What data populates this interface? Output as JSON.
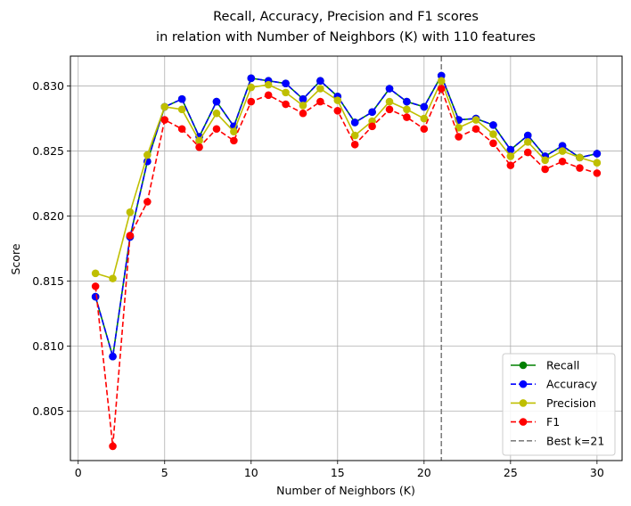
{
  "chart_data": {
    "type": "line",
    "title_line1": "Recall, Accuracy, Precision and F1 scores",
    "title_line2": "in relation with Number of Neighbors (K) with 110 features",
    "xlabel": "Number of Neighbors (K)",
    "ylabel": "Score",
    "xlim": [
      -0.45,
      31.45
    ],
    "ylim": [
      0.8012,
      0.8323
    ],
    "xticks": [
      0,
      5,
      10,
      15,
      20,
      25,
      30
    ],
    "yticks": [
      0.805,
      0.81,
      0.815,
      0.82,
      0.825,
      0.83
    ],
    "ytick_labels": [
      "0.805",
      "0.810",
      "0.815",
      "0.820",
      "0.825",
      "0.830"
    ],
    "grid": true,
    "legend_position": "lower right",
    "x": [
      1,
      2,
      3,
      4,
      5,
      6,
      7,
      8,
      9,
      10,
      11,
      12,
      13,
      14,
      15,
      16,
      17,
      18,
      19,
      20,
      21,
      22,
      23,
      24,
      25,
      26,
      27,
      28,
      29,
      30
    ],
    "series": [
      {
        "name": "Recall",
        "color": "#008000",
        "dash": "solid",
        "values": [
          0.8138,
          0.8092,
          0.8184,
          0.8242,
          0.8284,
          0.829,
          0.8261,
          0.8288,
          0.8269,
          0.8306,
          0.8304,
          0.8302,
          0.829,
          0.8304,
          0.8292,
          0.8272,
          0.828,
          0.8298,
          0.8288,
          0.8284,
          0.8308,
          0.8274,
          0.8275,
          0.827,
          0.8251,
          0.8262,
          0.8246,
          0.8254,
          0.8245,
          0.8248
        ]
      },
      {
        "name": "Accuracy",
        "color": "#0000ff",
        "dash": "dashed",
        "values": [
          0.8138,
          0.8092,
          0.8184,
          0.8242,
          0.8284,
          0.829,
          0.8261,
          0.8288,
          0.8269,
          0.8306,
          0.8304,
          0.8302,
          0.829,
          0.8304,
          0.8292,
          0.8272,
          0.828,
          0.8298,
          0.8288,
          0.8284,
          0.8308,
          0.8274,
          0.8275,
          0.827,
          0.8251,
          0.8262,
          0.8246,
          0.8254,
          0.8245,
          0.8248
        ]
      },
      {
        "name": "Precision",
        "color": "#bfbf00",
        "dash": "solid",
        "values": [
          0.8156,
          0.8152,
          0.8203,
          0.8247,
          0.8284,
          0.8282,
          0.8258,
          0.8279,
          0.8265,
          0.8299,
          0.8301,
          0.8295,
          0.8285,
          0.8298,
          0.8289,
          0.8262,
          0.8273,
          0.8288,
          0.8282,
          0.8275,
          0.8304,
          0.8268,
          0.8274,
          0.8263,
          0.8246,
          0.8257,
          0.8243,
          0.825,
          0.8245,
          0.8241
        ]
      },
      {
        "name": "F1",
        "color": "#ff0000",
        "dash": "dashed",
        "values": [
          0.8146,
          0.8023,
          0.8185,
          0.8211,
          0.8274,
          0.8267,
          0.8253,
          0.8267,
          0.8258,
          0.8288,
          0.8293,
          0.8286,
          0.8279,
          0.8288,
          0.8281,
          0.8255,
          0.8269,
          0.8282,
          0.8276,
          0.8267,
          0.8298,
          0.8261,
          0.8267,
          0.8256,
          0.8239,
          0.8249,
          0.8236,
          0.8242,
          0.8237,
          0.8233
        ]
      }
    ],
    "vline": {
      "name": "Best k=21",
      "x": 21,
      "color": "#808080",
      "dash": "dashed"
    }
  }
}
